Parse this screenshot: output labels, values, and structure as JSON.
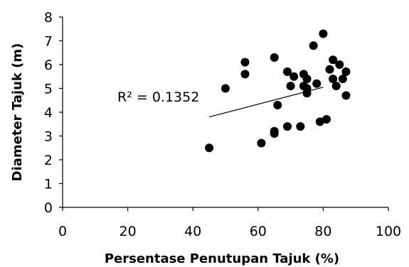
{
  "chart_data": {
    "type": "scatter",
    "title": "",
    "xlabel": "Persentase Penutupan Tajuk (%)",
    "ylabel": "Diameter Tajuk (m)",
    "xlim": [
      0,
      100
    ],
    "ylim": [
      0,
      8
    ],
    "x_ticks": [
      0,
      20,
      40,
      60,
      80,
      100
    ],
    "y_ticks": [
      0,
      1,
      2,
      3,
      4,
      5,
      6,
      7,
      8
    ],
    "grid": false,
    "legend": "none",
    "marker_color": "#000000",
    "trendline": {
      "type": "linear",
      "x_range": [
        45,
        80
      ],
      "y_range": [
        3.8,
        5.05
      ],
      "annotation": "R² = 0.1352"
    },
    "points": [
      {
        "x": 45,
        "y": 2.5
      },
      {
        "x": 50,
        "y": 5.0
      },
      {
        "x": 56,
        "y": 6.1
      },
      {
        "x": 56,
        "y": 5.6
      },
      {
        "x": 61,
        "y": 2.7
      },
      {
        "x": 65,
        "y": 6.3
      },
      {
        "x": 65,
        "y": 3.2
      },
      {
        "x": 65,
        "y": 3.1
      },
      {
        "x": 66,
        "y": 4.3
      },
      {
        "x": 69,
        "y": 5.7
      },
      {
        "x": 69,
        "y": 3.4
      },
      {
        "x": 70,
        "y": 5.1
      },
      {
        "x": 71,
        "y": 5.5
      },
      {
        "x": 73,
        "y": 3.4
      },
      {
        "x": 74,
        "y": 5.6
      },
      {
        "x": 74,
        "y": 5.1
      },
      {
        "x": 75,
        "y": 5.4
      },
      {
        "x": 75,
        "y": 5.0
      },
      {
        "x": 75,
        "y": 4.8
      },
      {
        "x": 77,
        "y": 6.8
      },
      {
        "x": 78,
        "y": 5.2
      },
      {
        "x": 79,
        "y": 3.6
      },
      {
        "x": 80,
        "y": 7.3
      },
      {
        "x": 81,
        "y": 3.7
      },
      {
        "x": 82,
        "y": 5.8
      },
      {
        "x": 83,
        "y": 6.2
      },
      {
        "x": 83,
        "y": 5.4
      },
      {
        "x": 84,
        "y": 5.1
      },
      {
        "x": 85,
        "y": 6.0
      },
      {
        "x": 86,
        "y": 5.4
      },
      {
        "x": 87,
        "y": 5.7
      },
      {
        "x": 87,
        "y": 4.7
      }
    ]
  }
}
